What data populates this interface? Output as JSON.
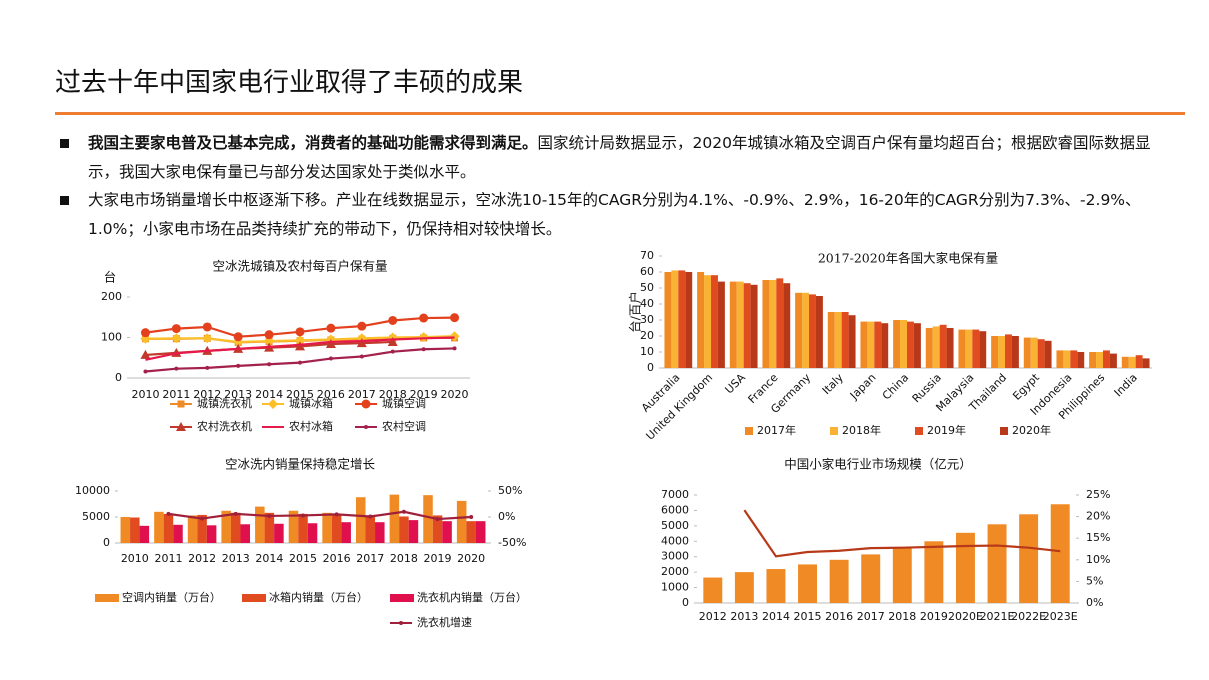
{
  "header": {
    "title": "过去十年中国家电行业取得了丰硕的成果"
  },
  "bullets": [
    {
      "bold": "我国主要家电普及已基本完成，消费者的基础功能需求得到满足。",
      "text": "国家统计局数据显示，2020年城镇冰箱及空调百户保有量均超百台；根据欧睿国际数据显示，我国大家电保有量已与部分发达国家处于类似水平。"
    },
    {
      "text": "大家电市场销量增长中枢逐渐下移。产业在线数据显示，空冰洗10-15年的CAGR分别为4.1%、-0.9%、2.9%，16-20年的CAGR分别为7.3%、-2.9%、1.0%；小家电市场在品类持续扩充的带动下，仍保持相对较快增长。"
    }
  ],
  "chart_data": [
    {
      "type": "line",
      "title": "空冰洗城镇及农村每百户保有量",
      "y_label": "台",
      "categories": [
        "2010",
        "2011",
        "2012",
        "2013",
        "2014",
        "2015",
        "2016",
        "2017",
        "2018",
        "2019",
        "2020"
      ],
      "ylim": [
        0,
        200
      ],
      "yticks": [
        0,
        100,
        200
      ],
      "series": [
        {
          "name": "城镇洗衣机",
          "color": "#f08a24",
          "marker": "square",
          "values": [
            97,
            97,
            98,
            88,
            90,
            92,
            94,
            96,
            98,
            99,
            99
          ]
        },
        {
          "name": "城镇冰箱",
          "color": "#fbbf2a",
          "marker": "diamond",
          "values": [
            97,
            98,
            98,
            89,
            91,
            93,
            95,
            98,
            100,
            101,
            103
          ]
        },
        {
          "name": "城镇空调",
          "color": "#e3401e",
          "marker": "circle",
          "values": [
            112,
            122,
            126,
            102,
            107,
            114,
            123,
            128,
            142,
            148,
            149
          ]
        },
        {
          "name": "农村洗衣机",
          "color": "#c0392b",
          "marker": "triangle",
          "values": [
            57,
            62,
            67,
            72,
            75,
            78,
            84,
            86,
            89,
            null,
            null
          ]
        },
        {
          "name": "农村冰箱",
          "color": "#e6194b",
          "marker": "none",
          "values": [
            45,
            61,
            67,
            72,
            77,
            82,
            89,
            91,
            95,
            98,
            100
          ]
        },
        {
          "name": "农村空调",
          "color": "#a3214a",
          "marker": "dot",
          "values": [
            16,
            23,
            25,
            30,
            34,
            38,
            48,
            53,
            65,
            71,
            73
          ]
        }
      ]
    },
    {
      "type": "bar",
      "title": "2017-2020年各国大家电保有量",
      "y_label": "台/百户",
      "categories": [
        "Australia",
        "United Kingdom",
        "USA",
        "France",
        "Germany",
        "Italy",
        "Japan",
        "China",
        "Russia",
        "Malaysia",
        "Thailand",
        "Egypt",
        "Indonesia",
        "Philippines",
        "India"
      ],
      "ylim": [
        0,
        70
      ],
      "yticks": [
        0,
        10,
        20,
        30,
        40,
        50,
        60,
        70
      ],
      "series": [
        {
          "name": "2017年",
          "color": "#f08a24",
          "values": [
            60,
            60,
            54,
            55,
            47,
            35,
            29,
            30,
            25,
            24,
            20,
            19,
            11,
            10,
            7
          ]
        },
        {
          "name": "2018年",
          "color": "#f9b233",
          "values": [
            61,
            58,
            54,
            55,
            47,
            35,
            29,
            30,
            26,
            24,
            20,
            19,
            11,
            10,
            7
          ]
        },
        {
          "name": "2019年",
          "color": "#e04b1f",
          "values": [
            61,
            58,
            53,
            56,
            46,
            35,
            29,
            29,
            27,
            24,
            21,
            18,
            11,
            11,
            8
          ]
        },
        {
          "name": "2020年",
          "color": "#b8391a",
          "values": [
            60,
            54,
            52,
            53,
            45,
            33,
            28,
            28,
            25,
            23,
            20,
            17,
            10,
            9,
            6
          ]
        }
      ]
    },
    {
      "type": "bar",
      "title": "空冰洗内销量保持稳定增长",
      "categories": [
        "2010",
        "2011",
        "2012",
        "2013",
        "2014",
        "2015",
        "2016",
        "2017",
        "2018",
        "2019",
        "2020"
      ],
      "ylim": [
        0,
        10000
      ],
      "yticks": [
        0,
        5000,
        10000
      ],
      "y2lim": [
        -50,
        50
      ],
      "y2ticks": [
        {
          "value": -50,
          "label": "-50%"
        },
        {
          "value": 0,
          "label": "0%"
        },
        {
          "value": 50,
          "label": "50%"
        }
      ],
      "series": [
        {
          "name": "空调内销量（万台）",
          "color": "#f08a24",
          "values": [
            5000,
            6000,
            5300,
            6200,
            7000,
            6200,
            5800,
            8800,
            9300,
            9200,
            8100
          ]
        },
        {
          "name": "冰箱内销量（万台）",
          "color": "#e04b1f",
          "values": [
            4900,
            5600,
            5400,
            5800,
            5800,
            5600,
            5500,
            5200,
            5100,
            5300,
            4200
          ]
        },
        {
          "name": "洗衣机内销量（万台）",
          "color": "#e0104f",
          "values": [
            3300,
            3500,
            3400,
            3600,
            3700,
            3800,
            4000,
            4000,
            4400,
            4200,
            4200
          ]
        },
        {
          "name": "洗衣机增速",
          "color": "#a0203c",
          "type": "line",
          "axis": "y2",
          "marker": "dot",
          "values": [
            null,
            6,
            -3,
            6,
            2,
            3,
            5,
            1,
            10,
            -4,
            0
          ]
        }
      ]
    },
    {
      "type": "bar",
      "title": "中国小家电行业市场规模（亿元）",
      "categories": [
        "2012",
        "2013",
        "2014",
        "2015",
        "2016",
        "2017",
        "2018",
        "2019",
        "2020E",
        "2021E",
        "2022E",
        "2023E"
      ],
      "ylim": [
        0,
        7000
      ],
      "yticks": [
        0,
        1000,
        2000,
        3000,
        4000,
        5000,
        6000,
        7000
      ],
      "y2lim": [
        0,
        25
      ],
      "y2ticks": [
        {
          "value": 0,
          "label": "0%"
        },
        {
          "value": 5,
          "label": "5%"
        },
        {
          "value": 10,
          "label": "10%"
        },
        {
          "value": 15,
          "label": "15%"
        },
        {
          "value": 20,
          "label": "20%"
        },
        {
          "value": 25,
          "label": "25%"
        }
      ],
      "series": [
        {
          "color": "#f08a24",
          "values": [
            1650,
            2000,
            2200,
            2500,
            2800,
            3150,
            3550,
            4000,
            4550,
            5100,
            5750,
            6400
          ]
        },
        {
          "color": "#b8391a",
          "type": "line",
          "axis": "y2",
          "marker": "none",
          "values": [
            null,
            21.5,
            10.8,
            11.8,
            12.1,
            12.7,
            12.8,
            13.0,
            13.2,
            13.3,
            12.8,
            12.0
          ]
        }
      ]
    }
  ]
}
